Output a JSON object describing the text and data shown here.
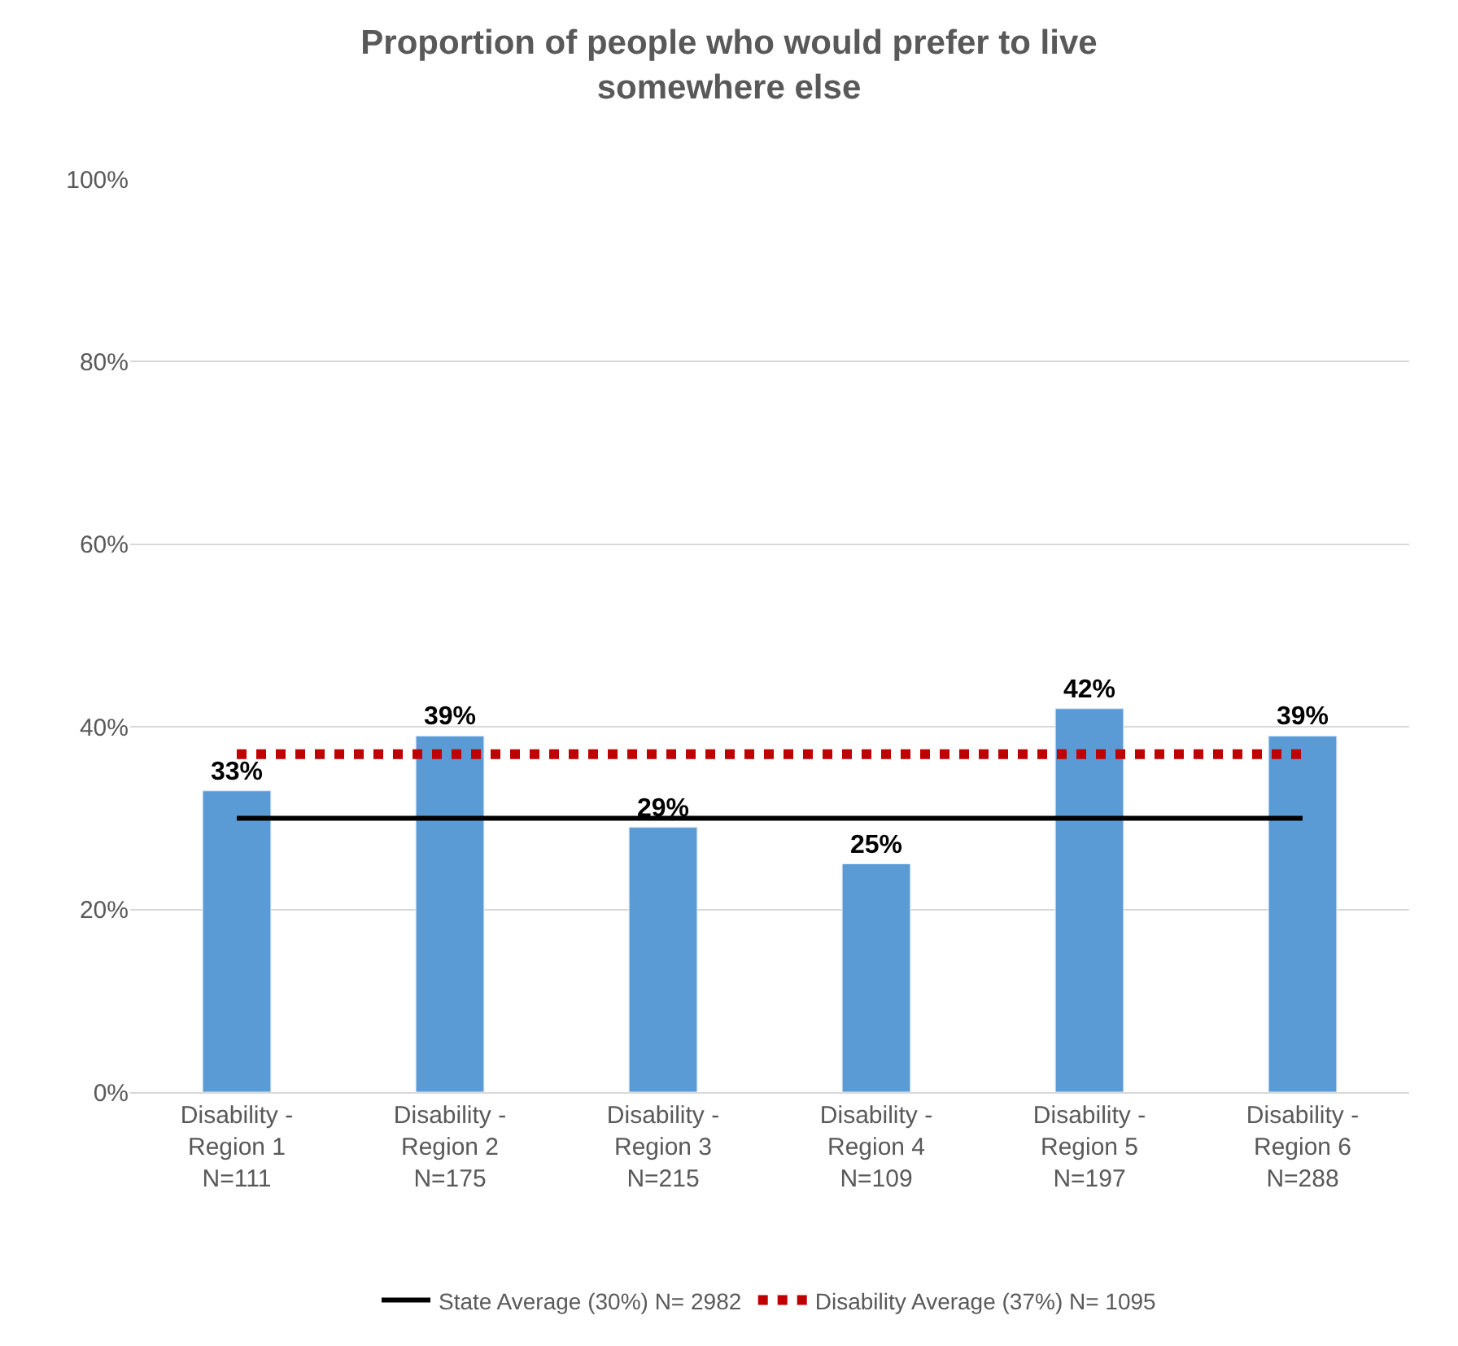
{
  "chart_data": {
    "type": "bar",
    "title": "Proportion of people who would prefer to live\nsomewhere else",
    "categories": [
      "Disability -\nRegion 1\nN=111",
      "Disability -\nRegion 2\nN=175",
      "Disability -\nRegion 3\nN=215",
      "Disability -\nRegion 4\nN=109",
      "Disability -\nRegion 5\nN=197",
      "Disability -\nRegion 6\nN=288"
    ],
    "series": [
      {
        "color": "#5b9bd5",
        "values": [
          33,
          39,
          29,
          25,
          42,
          39
        ],
        "value_labels": [
          "33%",
          "39%",
          "29%",
          "25%",
          "42%",
          "39%"
        ]
      },
      {
        "type": "line",
        "name": "State Average (30%) N= 2982",
        "color": "#000000",
        "line_style": "solid",
        "values": [
          30,
          30,
          30,
          30,
          30,
          30
        ]
      },
      {
        "type": "line",
        "name": "Disability Average (37%) N= 1095",
        "color": "#c00000",
        "line_style": "dotted",
        "values": [
          37,
          37,
          37,
          37,
          37,
          37
        ]
      }
    ],
    "ylim": [
      0,
      100
    ],
    "yticks": [
      {
        "value": 0,
        "label": "0%"
      },
      {
        "value": 20,
        "label": "20%"
      },
      {
        "value": 40,
        "label": "40%"
      },
      {
        "value": 60,
        "label": "60%"
      },
      {
        "value": 80,
        "label": "80%"
      },
      {
        "value": 100,
        "label": "100%"
      }
    ],
    "grid": "y",
    "legend": "bottom"
  }
}
